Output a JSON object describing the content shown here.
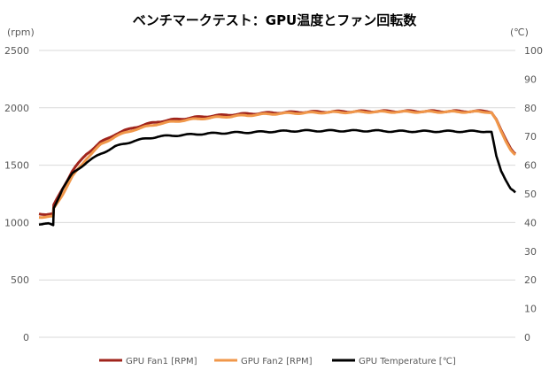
{
  "chart_data": {
    "type": "line",
    "title": "ベンチマークテスト：GPU温度とファン回転数",
    "ylabel": "(rpm)",
    "y2label": "(℃)",
    "ylim": [
      0,
      2500
    ],
    "y2lim": [
      0,
      100
    ],
    "yticks": [
      "0",
      "500",
      "1000",
      "1500",
      "2000",
      "2500"
    ],
    "y2ticks": [
      "0",
      "10",
      "20",
      "30",
      "40",
      "50",
      "60",
      "70",
      "80",
      "90",
      "100"
    ],
    "grid": true,
    "legend_placement": "bottom",
    "x": [
      0,
      2,
      3,
      3.1,
      5,
      7,
      10,
      13,
      16,
      20,
      25,
      30,
      35,
      40,
      45,
      50,
      55,
      60,
      65,
      70,
      75,
      80,
      85,
      90,
      94,
      95,
      96,
      97,
      98,
      99,
      100
    ],
    "series": [
      {
        "name": "GPU Fan1 [RPM]",
        "axis": "left",
        "color": "#a0241c",
        "values": [
          1075,
          1075,
          1075,
          1150,
          1300,
          1450,
          1600,
          1700,
          1770,
          1830,
          1880,
          1905,
          1925,
          1940,
          1950,
          1958,
          1963,
          1966,
          1968,
          1970,
          1970,
          1970,
          1970,
          1970,
          1970,
          1965,
          1900,
          1800,
          1720,
          1650,
          1600
        ]
      },
      {
        "name": "GPU Fan2 [RPM]",
        "axis": "left",
        "color": "#f0974a",
        "values": [
          1050,
          1050,
          1050,
          1120,
          1250,
          1400,
          1560,
          1680,
          1750,
          1810,
          1860,
          1890,
          1910,
          1925,
          1938,
          1950,
          1955,
          1960,
          1962,
          1965,
          1965,
          1965,
          1965,
          1965,
          1965,
          1960,
          1890,
          1790,
          1710,
          1640,
          1590
        ]
      },
      {
        "name": "GPU Temperature [℃]",
        "axis": "right",
        "color": "#000000",
        "values": [
          39.5,
          39.5,
          39,
          45,
          52,
          57,
          61,
          64,
          66.5,
          68.5,
          70,
          70.5,
          71,
          71.3,
          71.5,
          71.8,
          72,
          72,
          72,
          72,
          71.8,
          71.8,
          71.8,
          71.8,
          71.8,
          71.5,
          63,
          58,
          55,
          52,
          50.5
        ]
      }
    ]
  }
}
